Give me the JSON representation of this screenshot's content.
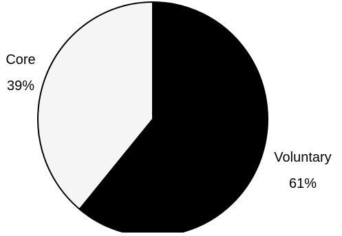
{
  "chart_data": {
    "type": "pie",
    "title": "",
    "slices": [
      {
        "label": "Voluntary",
        "value": 61,
        "value_label": "61%",
        "color": "#000000",
        "label_position": "right"
      },
      {
        "label": "Core",
        "value": 39,
        "value_label": "39%",
        "color": "#f5f5f5",
        "label_position": "left"
      }
    ],
    "start_angle": "top",
    "direction": "clockwise",
    "outline_color": "#000000",
    "legend": "none"
  }
}
